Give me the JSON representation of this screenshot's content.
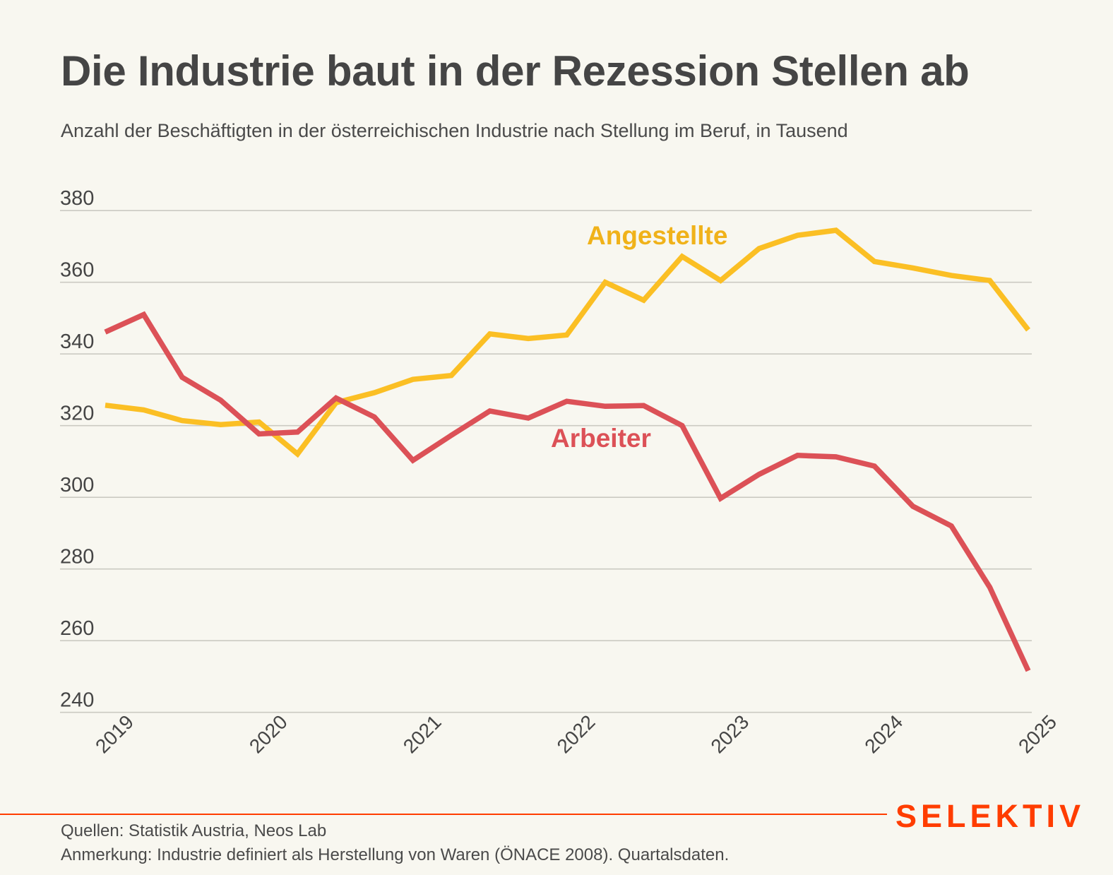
{
  "header": {
    "title": "Die Industrie baut in der Rezession Stellen ab",
    "subtitle": "Anzahl der Beschäftigten in der österreichischen Industrie nach Stellung im Beruf, in Tausend"
  },
  "footer": {
    "sources": "Quellen: Statistik Austria, Neos Lab",
    "note": "Anmerkung: Industrie definiert als Herstellung von Waren (ÖNACE 2008). Quartalsdaten.",
    "brand": "SELEKTIV",
    "brand_color": "#FF3D00"
  },
  "chart_data": {
    "type": "line",
    "title": "Die Industrie baut in der Rezession Stellen ab",
    "subtitle": "Anzahl der Beschäftigten in der österreichischen Industrie nach Stellung im Beruf, in Tausend",
    "xlabel": "",
    "ylabel": "",
    "x": [
      "2019Q1",
      "2019Q2",
      "2019Q3",
      "2019Q4",
      "2020Q1",
      "2020Q2",
      "2020Q3",
      "2020Q4",
      "2021Q1",
      "2021Q2",
      "2021Q3",
      "2021Q4",
      "2022Q1",
      "2022Q2",
      "2022Q3",
      "2022Q4",
      "2023Q1",
      "2023Q2",
      "2023Q3",
      "2023Q4",
      "2024Q1",
      "2024Q2",
      "2024Q3",
      "2024Q4",
      "2025Q1"
    ],
    "x_ticks": [
      "2019",
      "2020",
      "2021",
      "2022",
      "2023",
      "2024",
      "2025"
    ],
    "y_ticks": [
      240,
      260,
      280,
      300,
      320,
      340,
      360,
      380
    ],
    "ylim": [
      240,
      380
    ],
    "grid": true,
    "legend": "inline labels",
    "series": [
      {
        "name": "Angestellte",
        "color": "#FBBF24",
        "label_color": "#F0B21A",
        "values": [
          325.7,
          324.4,
          321.4,
          320.3,
          321.0,
          312.1,
          326.4,
          329.2,
          332.9,
          334.0,
          345.6,
          344.3,
          345.3,
          360.0,
          355.0,
          367.2,
          360.5,
          369.4,
          373.1,
          374.5,
          365.8,
          364.0,
          361.9,
          360.5,
          346.7
        ]
      },
      {
        "name": "Arbeiter",
        "color": "#DC5157",
        "label_color": "#DC5157",
        "values": [
          346.1,
          351.0,
          333.5,
          327.1,
          317.7,
          318.2,
          327.7,
          322.4,
          310.3,
          317.3,
          324.1,
          322.1,
          326.8,
          325.4,
          325.6,
          320.0,
          299.7,
          306.4,
          311.7,
          311.3,
          308.7,
          297.5,
          292.0,
          274.9,
          251.6
        ]
      }
    ]
  }
}
